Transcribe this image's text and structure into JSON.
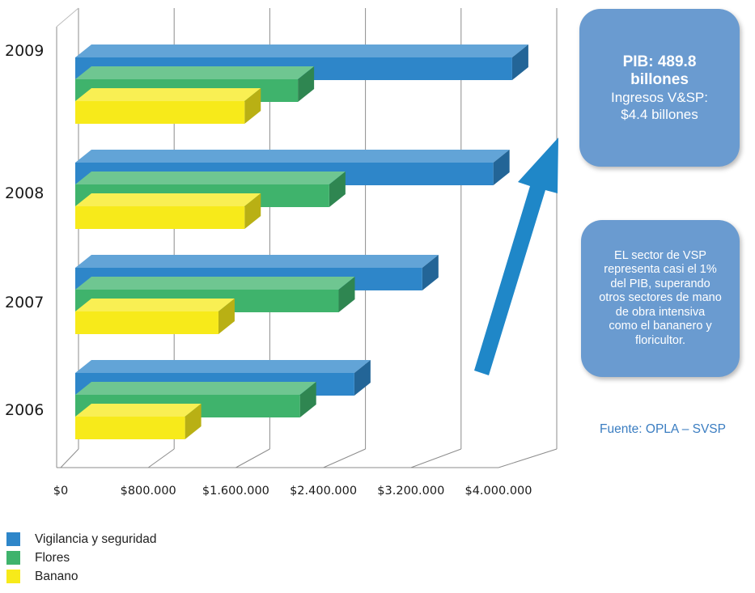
{
  "chart_data": {
    "type": "bar",
    "orientation": "horizontal",
    "style": "3d",
    "categories": [
      "2006",
      "2007",
      "2008",
      "2009"
    ],
    "series": [
      {
        "name": "Vigilancia y seguridad",
        "color": "#2e86c9",
        "values": [
          2670000,
          3320000,
          4000000,
          4180000
        ]
      },
      {
        "name": "Flores",
        "color": "#3fb36c",
        "values": [
          2150000,
          2520000,
          2430000,
          2130000
        ]
      },
      {
        "name": "Banano",
        "color": "#f7ea1a",
        "values": [
          1050000,
          1370000,
          1620000,
          1620000
        ]
      }
    ],
    "x_ticks": [
      "$0",
      "$800.000",
      "$1.600.000",
      "$2.400.000",
      "$3.200.000",
      "$4.000.000"
    ],
    "xlim": [
      0,
      4000000
    ],
    "grid": true,
    "legend_position": "bottom-left"
  },
  "annotation_pib": {
    "line1": "PIB: 489.8",
    "line2": "billones",
    "line3": "Ingresos V&SP:",
    "line4": "$4.4 billones"
  },
  "annotation_note": {
    "lines": [
      "EL sector de VSP",
      "representa casi el 1%",
      "del PIB, superando",
      "otros sectores de mano",
      "de obra  intensiva",
      "como el bananero y",
      "floricultor."
    ]
  },
  "source_text": "Fuente: OPLA – SVSP",
  "arrow_color": "#1f87c8",
  "box_color": "#6a9bd0"
}
